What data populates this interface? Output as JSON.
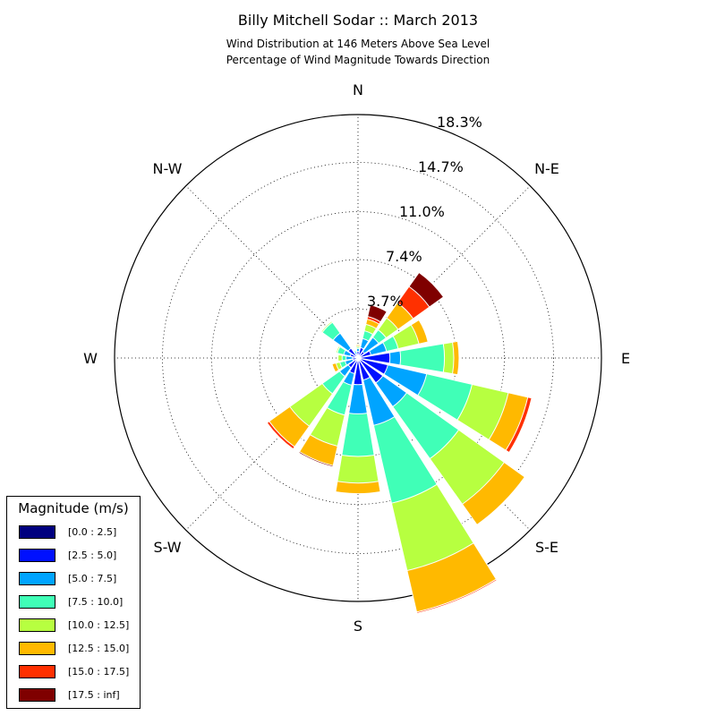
{
  "title": "Billy Mitchell Sodar :: March 2013",
  "subtitle_lines": [
    "Wind Distribution at 146 Meters Above Sea Level",
    "Percentage of Wind Magnitude Towards Direction"
  ],
  "chart_data": {
    "type": "windrose",
    "directions": [
      "N",
      "NNE",
      "NE",
      "ENE",
      "E",
      "ESE",
      "SE",
      "SSE",
      "S",
      "SSW",
      "SW",
      "WSW",
      "W",
      "WNW",
      "NW",
      "NNW"
    ],
    "direction_labels": [
      "N",
      "N-E",
      "E",
      "S-E",
      "S",
      "S-W",
      "W",
      "N-W"
    ],
    "radial_ticks": [
      "3.7%",
      "7.4%",
      "11.0%",
      "14.7%",
      "18.3%"
    ],
    "radial_tick_values": [
      3.7,
      7.4,
      11.0,
      14.7,
      18.3
    ],
    "r_max": 18.3,
    "bins": [
      {
        "label": "[0.0 : 2.5]",
        "color": "#00007f"
      },
      {
        "label": "[2.5 : 5.0]",
        "color": "#0010ff"
      },
      {
        "label": "[5.0 : 7.5]",
        "color": "#00a4ff"
      },
      {
        "label": "[7.5 : 10.0]",
        "color": "#40ffb7"
      },
      {
        "label": "[10.0 : 12.5]",
        "color": "#b7ff40"
      },
      {
        "label": "[12.5 : 15.0]",
        "color": "#ffb900"
      },
      {
        "label": "[15.0 : 17.5]",
        "color": "#ff3000"
      },
      {
        "label": "[17.5 : inf]",
        "color": "#7f0000"
      }
    ],
    "cumulative_percent": [
      [
        0.1,
        0.5,
        0.7,
        0.8,
        0.9,
        1.0,
        1.0,
        1.0
      ],
      [
        0.2,
        0.8,
        1.5,
        2.1,
        2.6,
        3.0,
        3.2,
        4.1
      ],
      [
        0.2,
        0.6,
        1.9,
        2.6,
        3.7,
        5.1,
        6.6,
        7.9
      ],
      [
        0.2,
        1.0,
        2.2,
        3.1,
        4.7,
        5.4,
        5.4,
        5.4
      ],
      [
        0.2,
        2.4,
        3.2,
        6.5,
        7.2,
        7.6,
        7.6,
        7.6
      ],
      [
        0.2,
        2.3,
        5.3,
        8.8,
        11.6,
        13.1,
        13.4,
        13.4
      ],
      [
        0.2,
        2.3,
        4.5,
        9.3,
        13.5,
        15.4,
        15.4,
        15.4
      ],
      [
        0.2,
        1.7,
        5.2,
        11.2,
        16.4,
        19.6,
        19.7,
        19.7
      ],
      [
        0.2,
        2.0,
        4.2,
        7.4,
        9.4,
        10.2,
        10.2,
        10.2
      ],
      [
        0.2,
        1.2,
        2.1,
        4.4,
        6.8,
        8.3,
        8.3,
        8.4
      ],
      [
        0.2,
        0.9,
        1.7,
        3.3,
        6.3,
        8.2,
        8.4,
        8.4
      ],
      [
        0.1,
        0.4,
        1.0,
        1.4,
        1.7,
        2.0,
        2.0,
        2.0
      ],
      [
        0.1,
        0.4,
        0.9,
        1.2,
        1.5,
        1.5,
        1.5,
        1.5
      ],
      [
        0.1,
        0.6,
        1.1,
        1.6,
        1.7,
        1.7,
        1.7,
        1.7
      ],
      [
        0.1,
        0.9,
        2.3,
        3.3,
        3.4,
        3.4,
        3.4,
        3.4
      ],
      [
        0.1,
        0.3,
        0.5,
        0.6,
        0.6,
        0.6,
        0.6,
        0.6
      ]
    ]
  },
  "legend": {
    "title": "Magnitude (m/s)"
  }
}
